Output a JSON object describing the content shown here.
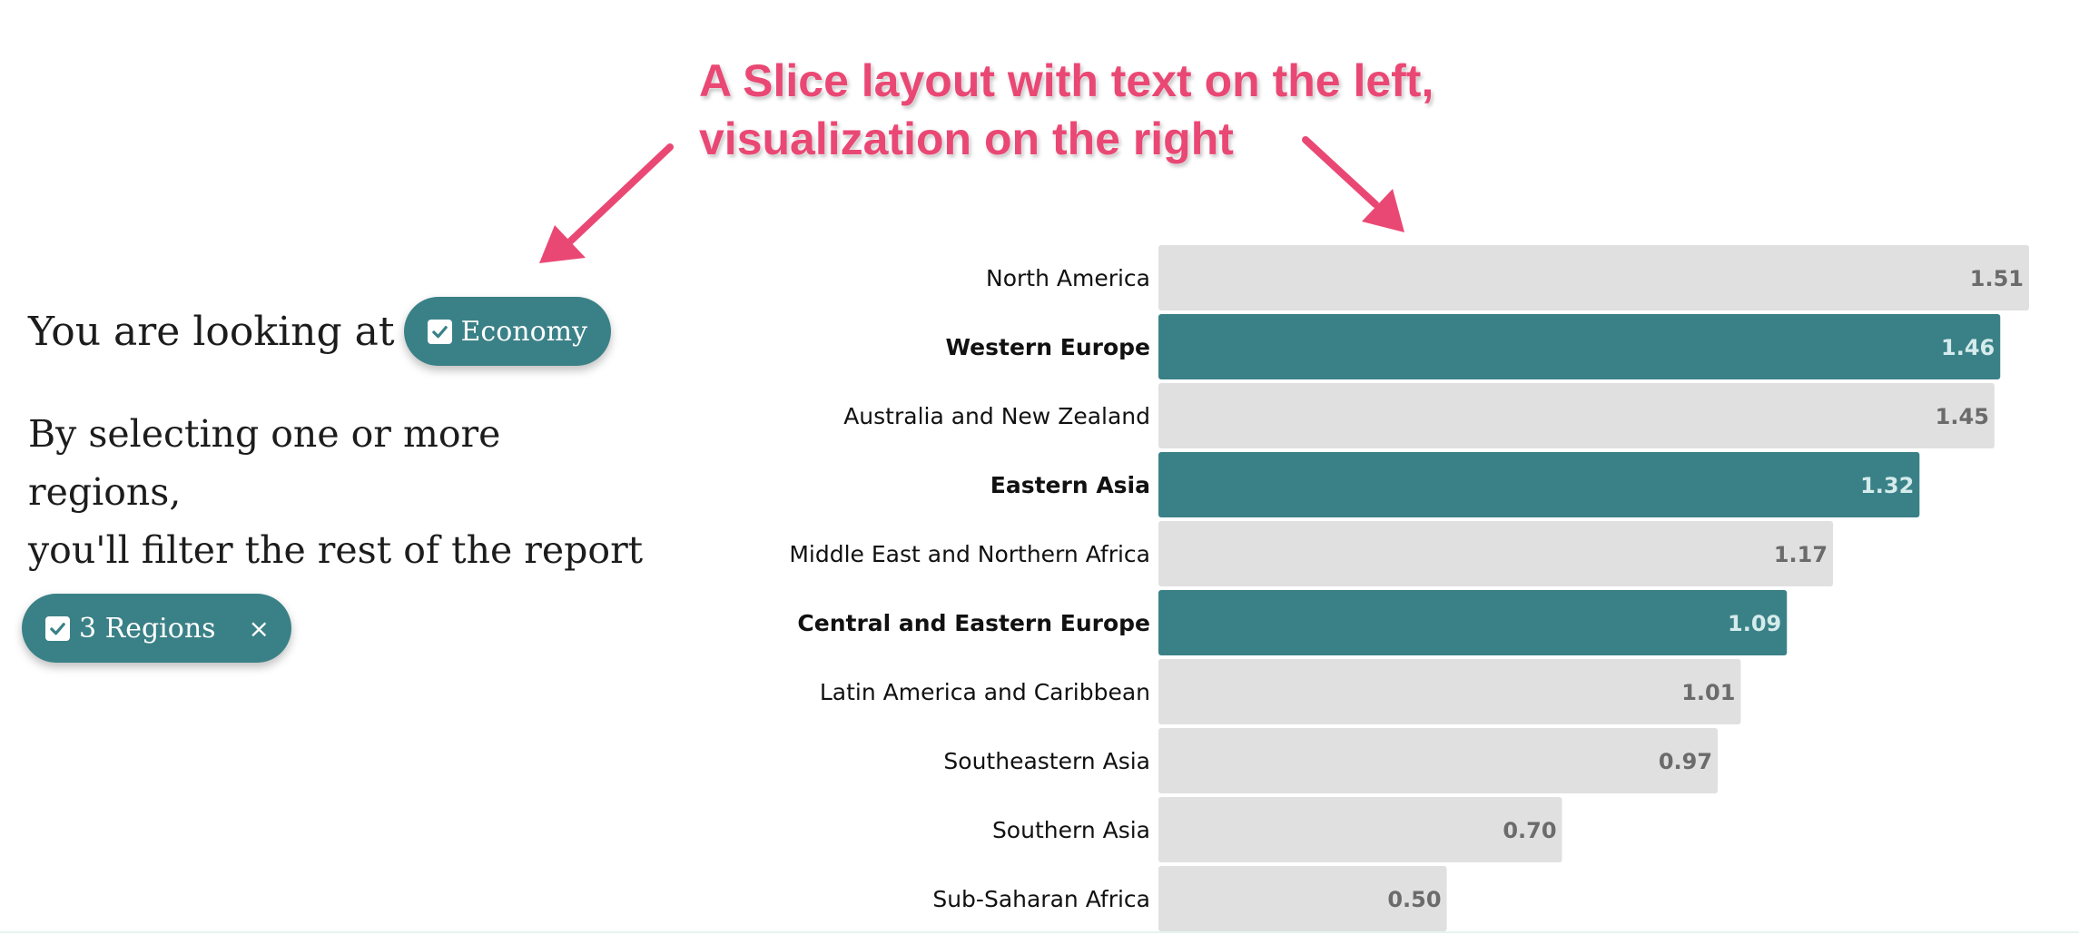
{
  "annotation": {
    "line1": "A Slice layout with text on the left,",
    "line2": "visualization on the right",
    "color": "#ea4874"
  },
  "left_panel": {
    "looking_text": "You are looking at",
    "economy_pill": "Economy",
    "instruction_line1": "By selecting one or more regions,",
    "instruction_line2": "you'll filter the rest of the report",
    "regions_pill": "3 Regions",
    "close_symbol": "×",
    "pill_color": "#3a8187"
  },
  "chart_data": {
    "type": "bar",
    "orientation": "horizontal",
    "categories": [
      "North America",
      "Western Europe",
      "Australia and New Zealand",
      "Eastern Asia",
      "Middle East and Northern Africa",
      "Central and Eastern Europe",
      "Latin America and Caribbean",
      "Southeastern Asia",
      "Southern Asia",
      "Sub-Saharan Africa"
    ],
    "values": [
      1.51,
      1.46,
      1.45,
      1.32,
      1.17,
      1.09,
      1.01,
      0.97,
      0.7,
      0.5
    ],
    "value_labels": [
      "1.51",
      "1.46",
      "1.45",
      "1.32",
      "1.17",
      "1.09",
      "1.01",
      "0.97",
      "0.70",
      "0.50"
    ],
    "selected": [
      false,
      true,
      false,
      true,
      false,
      true,
      false,
      false,
      false,
      false
    ],
    "xlim": [
      0,
      1.51
    ],
    "colors": {
      "selected": "#3a8187",
      "unselected": "#e0e0e0",
      "selected_label": "#d5ebec",
      "unselected_label": "#6b6b6b"
    }
  }
}
